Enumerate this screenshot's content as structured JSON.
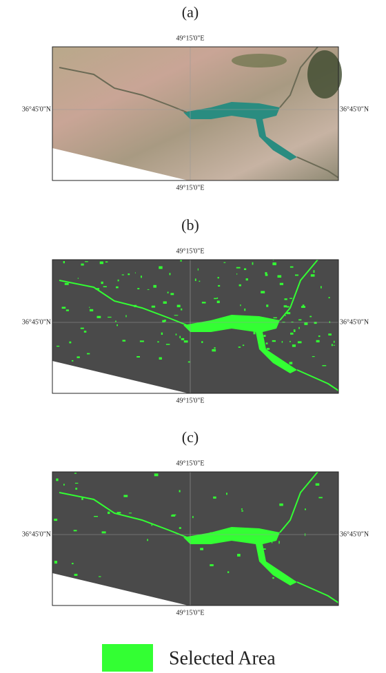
{
  "panels": [
    {
      "label": "(a)",
      "top_longitude": "49°15'0\"E",
      "bottom_longitude": "49°15'0\"E",
      "left_latitude": "36°45'0\"N",
      "right_latitude": "36°45'0\"N"
    },
    {
      "label": "(b)",
      "top_longitude": "49°15'0\"E",
      "bottom_longitude": "49°15'0\"E",
      "left_latitude": "36°45'0\"N",
      "right_latitude": "36°45'0\"N"
    },
    {
      "label": "(c)",
      "top_longitude": "49°15'0\"E",
      "bottom_longitude": "49°15'0\"E",
      "left_latitude": "36°45'0\"N",
      "right_latitude": "36°45'0\"N"
    }
  ],
  "legend": {
    "label": "Selected Area"
  }
}
